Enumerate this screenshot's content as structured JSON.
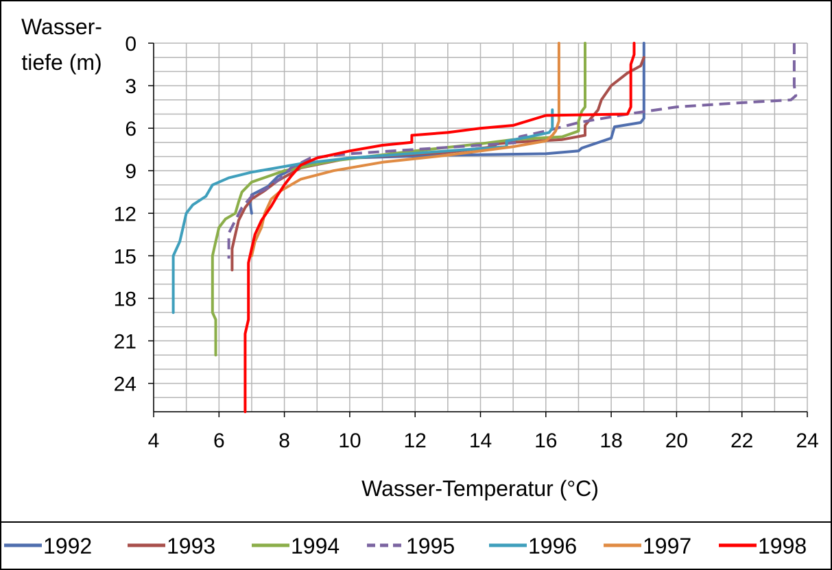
{
  "chart_data": {
    "type": "line",
    "title": "",
    "xlabel": "Wasser-Temperatur (°C)",
    "ylabel_line1": "Wasser-",
    "ylabel_line2": "tiefe (m)",
    "xlim": [
      4,
      24
    ],
    "ylim": [
      0,
      26
    ],
    "y_inverted": true,
    "x_ticks": [
      "4",
      "6",
      "8",
      "10",
      "12",
      "14",
      "16",
      "18",
      "20",
      "22",
      "24"
    ],
    "x_tick_values": [
      4,
      6,
      8,
      10,
      12,
      14,
      16,
      18,
      20,
      22,
      24
    ],
    "y_ticks": [
      "0",
      "3",
      "6",
      "9",
      "12",
      "15",
      "18",
      "21",
      "24"
    ],
    "y_tick_values": [
      0,
      3,
      6,
      9,
      12,
      15,
      18,
      21,
      24
    ],
    "x_grid_step": 1,
    "y_grid_step": 1,
    "grid": true,
    "legend_position": "bottom",
    "series": [
      {
        "name": "1992",
        "color": "#4F6EAE",
        "dash": "solid",
        "points": [
          [
            19.0,
            0
          ],
          [
            19.0,
            5.3
          ],
          [
            18.9,
            5.6
          ],
          [
            18.1,
            5.9
          ],
          [
            18.0,
            6.7
          ],
          [
            17.1,
            7.4
          ],
          [
            17.0,
            7.6
          ],
          [
            16.0,
            7.8
          ],
          [
            13.0,
            7.9
          ],
          [
            10.0,
            8.1
          ],
          [
            8.5,
            8.6
          ],
          [
            7.8,
            9.4
          ],
          [
            7.5,
            10.1
          ],
          [
            7.0,
            10.7
          ],
          [
            6.95,
            11.3
          ],
          [
            7.0,
            12.0
          ]
        ]
      },
      {
        "name": "1993",
        "color": "#A84F4B",
        "dash": "solid",
        "points": [
          [
            19.0,
            1.0
          ],
          [
            18.9,
            1.6
          ],
          [
            18.5,
            2.1
          ],
          [
            18.0,
            3.0
          ],
          [
            17.7,
            4.0
          ],
          [
            17.6,
            4.7
          ],
          [
            17.2,
            5.8
          ],
          [
            17.2,
            6.5
          ],
          [
            16.5,
            6.8
          ],
          [
            15.0,
            7.0
          ],
          [
            14.5,
            7.1
          ],
          [
            14.4,
            7.3
          ],
          [
            13.0,
            7.7
          ],
          [
            10.0,
            8.1
          ],
          [
            8.5,
            8.8
          ],
          [
            7.8,
            9.7
          ],
          [
            7.4,
            10.4
          ],
          [
            7.0,
            11.0
          ],
          [
            6.8,
            11.6
          ],
          [
            6.6,
            12.5
          ],
          [
            6.5,
            13.5
          ],
          [
            6.4,
            14.5
          ],
          [
            6.4,
            15.0
          ],
          [
            6.4,
            16.0
          ]
        ]
      },
      {
        "name": "1994",
        "color": "#8BAE49",
        "dash": "solid",
        "points": [
          [
            17.2,
            0
          ],
          [
            17.2,
            4.5
          ],
          [
            17.1,
            4.8
          ],
          [
            17.0,
            5.5
          ],
          [
            17.0,
            6.2
          ],
          [
            16.5,
            6.6
          ],
          [
            15.0,
            6.8
          ],
          [
            14.0,
            7.1
          ],
          [
            12.0,
            7.6
          ],
          [
            9.5,
            8.3
          ],
          [
            8.0,
            9.0
          ],
          [
            7.0,
            9.8
          ],
          [
            6.7,
            10.5
          ],
          [
            6.6,
            11.2
          ],
          [
            6.5,
            12.0
          ],
          [
            6.2,
            12.4
          ],
          [
            6.0,
            13.0
          ],
          [
            5.9,
            14.0
          ],
          [
            5.8,
            15.0
          ],
          [
            5.8,
            16.0
          ],
          [
            5.8,
            18.0
          ],
          [
            5.8,
            19.0
          ],
          [
            5.9,
            19.5
          ],
          [
            5.9,
            20.5
          ],
          [
            5.9,
            22.0
          ]
        ]
      },
      {
        "name": "1995",
        "color": "#7B64A1",
        "dash": "dashed",
        "points": [
          [
            23.6,
            0
          ],
          [
            23.6,
            3.0
          ],
          [
            23.65,
            3.7
          ],
          [
            23.5,
            4.0
          ],
          [
            22.0,
            4.2
          ],
          [
            20.0,
            4.5
          ],
          [
            18.5,
            5.0
          ],
          [
            17.0,
            5.6
          ],
          [
            16.0,
            6.2
          ],
          [
            15.2,
            6.6
          ],
          [
            15.2,
            7.0
          ],
          [
            14.0,
            7.2
          ],
          [
            12.0,
            7.5
          ],
          [
            10.0,
            7.8
          ],
          [
            8.8,
            8.1
          ],
          [
            8.2,
            8.8
          ],
          [
            7.9,
            9.5
          ],
          [
            7.5,
            10.2
          ],
          [
            7.0,
            10.8
          ],
          [
            6.7,
            11.6
          ],
          [
            6.5,
            12.5
          ],
          [
            6.3,
            13.4
          ],
          [
            6.3,
            14.4
          ],
          [
            6.3,
            15.2
          ]
        ]
      },
      {
        "name": "1996",
        "color": "#3F9FBC",
        "dash": "solid",
        "points": [
          [
            16.2,
            4.7
          ],
          [
            16.2,
            5.5
          ],
          [
            16.2,
            6.0
          ],
          [
            16.1,
            6.3
          ],
          [
            15.5,
            6.6
          ],
          [
            14.8,
            6.9
          ],
          [
            14.8,
            7.3
          ],
          [
            13.0,
            7.6
          ],
          [
            10.0,
            8.1
          ],
          [
            8.5,
            8.5
          ],
          [
            7.0,
            9.1
          ],
          [
            6.3,
            9.5
          ],
          [
            5.8,
            10.0
          ],
          [
            5.6,
            10.8
          ],
          [
            5.2,
            11.4
          ],
          [
            5.0,
            12.0
          ],
          [
            4.9,
            13.0
          ],
          [
            4.8,
            14.0
          ],
          [
            4.6,
            15.0
          ],
          [
            4.6,
            16.5
          ],
          [
            4.6,
            18.0
          ],
          [
            4.6,
            19.0
          ]
        ]
      },
      {
        "name": "1997",
        "color": "#E08B43",
        "dash": "solid",
        "points": [
          [
            16.4,
            0
          ],
          [
            16.4,
            4.0
          ],
          [
            16.4,
            5.5
          ],
          [
            16.3,
            6.2
          ],
          [
            16.2,
            6.5
          ],
          [
            16.0,
            6.9
          ],
          [
            15.0,
            7.3
          ],
          [
            13.0,
            7.9
          ],
          [
            11.0,
            8.4
          ],
          [
            9.5,
            9.0
          ],
          [
            8.5,
            9.6
          ],
          [
            7.9,
            10.4
          ],
          [
            7.6,
            11.0
          ],
          [
            7.4,
            12.0
          ],
          [
            7.3,
            13.0
          ],
          [
            7.1,
            14.0
          ],
          [
            7.0,
            15.0
          ]
        ]
      },
      {
        "name": "1998",
        "color": "#FF0000",
        "dash": "solid",
        "points": [
          [
            18.7,
            0
          ],
          [
            18.7,
            0.8
          ],
          [
            18.6,
            1.5
          ],
          [
            18.6,
            4.5
          ],
          [
            18.5,
            5.0
          ],
          [
            16.0,
            5.1
          ],
          [
            15.0,
            5.8
          ],
          [
            14.0,
            6.0
          ],
          [
            13.0,
            6.3
          ],
          [
            11.9,
            6.5
          ],
          [
            11.9,
            7.0
          ],
          [
            11.0,
            7.2
          ],
          [
            10.0,
            7.6
          ],
          [
            9.0,
            8.1
          ],
          [
            8.5,
            8.6
          ],
          [
            8.2,
            9.4
          ],
          [
            8.0,
            10.0
          ],
          [
            7.8,
            10.7
          ],
          [
            7.6,
            11.5
          ],
          [
            7.3,
            12.5
          ],
          [
            7.1,
            13.5
          ],
          [
            7.0,
            14.5
          ],
          [
            6.9,
            15.5
          ],
          [
            6.9,
            17.0
          ],
          [
            6.9,
            18.5
          ],
          [
            6.9,
            19.5
          ],
          [
            6.8,
            20.5
          ],
          [
            6.8,
            22.0
          ],
          [
            6.8,
            24.0
          ],
          [
            6.8,
            26.0
          ]
        ]
      }
    ]
  }
}
